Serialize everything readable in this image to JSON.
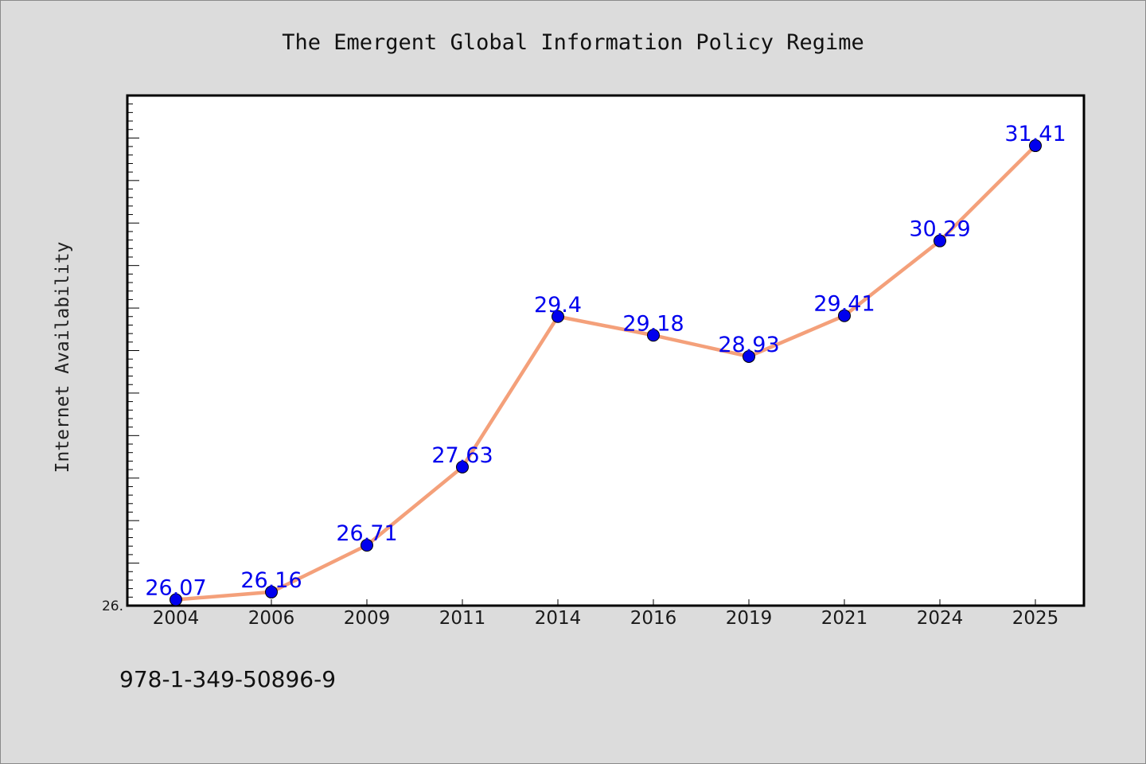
{
  "chart_data": {
    "type": "line",
    "title": "The Emergent Global Information Policy Regime",
    "ylabel": "Internet Availability",
    "xlabel": "",
    "categories": [
      "2004",
      "2006",
      "2009",
      "2011",
      "2014",
      "2016",
      "2019",
      "2021",
      "2024",
      "2025"
    ],
    "series": [
      {
        "values": [
          26.07,
          26.16,
          26.71,
          27.63,
          29.4,
          29.18,
          28.93,
          29.41,
          30.29,
          31.41
        ]
      }
    ],
    "data_labels": [
      "26.07",
      "26.16",
      "26.71",
      "27.63",
      "29.4",
      "29.18",
      "28.93",
      "29.41",
      "30.29",
      "31.41"
    ],
    "ylim": [
      26.0,
      32.0
    ],
    "y_tick_label": "26.",
    "grid": false,
    "legend": "none",
    "colors": {
      "line": "#f4a07a",
      "marker": "#0000ee",
      "label": "#0000ee",
      "background": "#dcdcdc",
      "plot_background": "#ffffff"
    }
  },
  "footnote": "978-1-349-50896-9"
}
